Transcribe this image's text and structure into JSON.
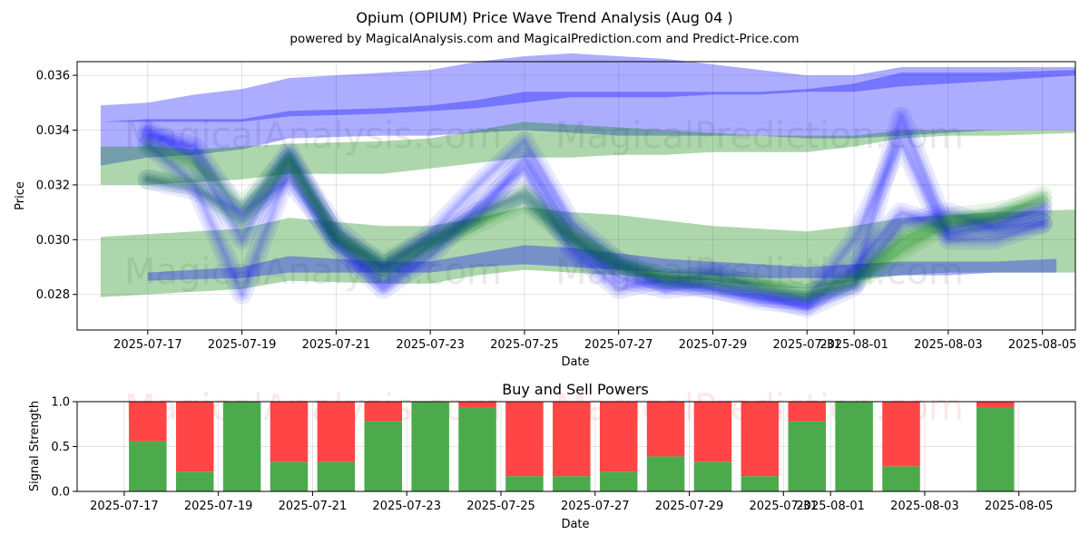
{
  "chart_data": [
    {
      "type": "line",
      "title": "Opium (OPIUM) Price Wave Trend Analysis (Aug 04 )",
      "subtitle": "powered by MagicalAnalysis.com and MagicalPrediction.com and Predict-Price.com",
      "xlabel": "Date",
      "ylabel": "Price",
      "ylim": [
        0.0267,
        0.0365
      ],
      "xrange_days": [
        -1.5,
        19.7
      ],
      "y_ticks": [
        0.028,
        0.03,
        0.032,
        0.034,
        0.036
      ],
      "y_tick_labels": [
        "0.028",
        "0.030",
        "0.032",
        "0.034",
        "0.036"
      ],
      "x_ticks": [
        0,
        2,
        4,
        6,
        8,
        10,
        12,
        14,
        15,
        17,
        19
      ],
      "x_tick_labels": [
        "2025-07-17",
        "2025-07-19",
        "2025-07-21",
        "2025-07-23",
        "2025-07-25",
        "2025-07-27",
        "2025-07-29",
        "2025-07-31",
        "2025-08-01",
        "2025-08-03",
        "2025-08-05"
      ],
      "watermarks": [
        "MagicalAnalysis.com",
        "MagicalPrediction.com"
      ],
      "price_days": [
        0,
        1,
        2,
        3,
        4,
        5,
        6,
        7,
        8,
        9,
        10,
        11,
        12,
        13,
        14,
        15,
        16,
        17,
        18,
        19
      ],
      "price_series": [
        {
          "name": "wave-1",
          "color": "#0000ff",
          "values": [
            0.0338,
            0.0334,
            0.0308,
            0.0332,
            0.03,
            0.0284,
            0.0298,
            0.0308,
            0.033,
            0.0302,
            0.0286,
            0.0282,
            0.0284,
            0.028,
            0.0275,
            0.0283,
            0.0345,
            0.0302,
            0.0305,
            0.0312
          ]
        },
        {
          "name": "wave-2",
          "color": "#0000ff",
          "values": [
            0.0335,
            0.032,
            0.028,
            0.0326,
            0.0298,
            0.0282,
            0.0294,
            0.0312,
            0.0326,
            0.0296,
            0.0282,
            0.0286,
            0.0282,
            0.0278,
            0.0276,
            0.029,
            0.031,
            0.0304,
            0.0308,
            0.031
          ]
        },
        {
          "name": "wave-3",
          "color": "#0000ff",
          "values": [
            0.0322,
            0.0318,
            0.031,
            0.0322,
            0.03,
            0.029,
            0.03,
            0.031,
            0.0316,
            0.03,
            0.029,
            0.0284,
            0.0282,
            0.0279,
            0.0278,
            0.0284,
            0.0306,
            0.031,
            0.0304,
            0.0306
          ]
        },
        {
          "name": "wave-4",
          "color": "#0000ff",
          "values": [
            0.034,
            0.033,
            0.03,
            0.033,
            0.0304,
            0.029,
            0.0302,
            0.032,
            0.0336,
            0.0306,
            0.0292,
            0.0284,
            0.0288,
            0.0282,
            0.0278,
            0.03,
            0.0336,
            0.03,
            0.03,
            0.0306
          ]
        },
        {
          "name": "wave-5",
          "color": "#008000",
          "values": [
            0.0334,
            0.0328,
            0.0312,
            0.033,
            0.03,
            0.0292,
            0.03,
            0.0308,
            0.0318,
            0.0302,
            0.0292,
            0.0286,
            0.0284,
            0.0282,
            0.028,
            0.0286,
            0.03,
            0.0308,
            0.031,
            0.0314
          ]
        },
        {
          "name": "wave-6",
          "color": "#008000",
          "values": [
            0.0322,
            0.032,
            0.0306,
            0.0328,
            0.0302,
            0.0288,
            0.0298,
            0.0306,
            0.0314,
            0.03,
            0.029,
            0.0286,
            0.0286,
            0.0284,
            0.028,
            0.0284,
            0.0296,
            0.0306,
            0.0308,
            0.0316
          ]
        }
      ],
      "bands": [
        {
          "name": "upper-blue-wide",
          "color": "#0000ff",
          "days": [
            -1,
            0,
            1,
            2,
            3,
            5,
            6,
            7,
            8,
            9,
            10,
            11,
            12,
            13,
            14,
            15,
            16,
            17,
            18,
            19.7
          ],
          "upper": [
            0.0349,
            0.035,
            0.0353,
            0.0355,
            0.0359,
            0.0361,
            0.0362,
            0.0365,
            0.0367,
            0.0368,
            0.0367,
            0.0366,
            0.0364,
            0.0362,
            0.036,
            0.036,
            0.0363,
            0.0363,
            0.0363,
            0.0363
          ],
          "lower": [
            0.0343,
            0.0343,
            0.0343,
            0.0343,
            0.0345,
            0.0346,
            0.0347,
            0.0348,
            0.035,
            0.0352,
            0.0352,
            0.0352,
            0.0353,
            0.0353,
            0.0354,
            0.0354,
            0.0356,
            0.0357,
            0.0358,
            0.036
          ]
        },
        {
          "name": "upper-blue-dark",
          "color": "#0000ff",
          "days": [
            -1,
            0,
            1,
            2,
            3,
            5,
            6,
            7,
            8,
            9,
            10,
            11,
            12,
            13,
            14,
            15,
            16,
            17,
            18,
            19.7
          ],
          "upper": [
            0.0343,
            0.0344,
            0.0344,
            0.0344,
            0.0347,
            0.0348,
            0.0349,
            0.0351,
            0.0354,
            0.0354,
            0.0354,
            0.0354,
            0.0354,
            0.0354,
            0.0355,
            0.0357,
            0.0361,
            0.0361,
            0.0361,
            0.0362
          ],
          "lower": [
            0.0327,
            0.033,
            0.0331,
            0.0333,
            0.0337,
            0.0338,
            0.0338,
            0.0339,
            0.034,
            0.0339,
            0.0338,
            0.0338,
            0.0338,
            0.0338,
            0.0337,
            0.0337,
            0.0338,
            0.0339,
            0.034,
            0.034
          ]
        },
        {
          "name": "upper-green",
          "color": "#008000",
          "days": [
            -1,
            0,
            1,
            2,
            3,
            5,
            6,
            7,
            8,
            9,
            10,
            11,
            12,
            13,
            14,
            15,
            16,
            17,
            18,
            19.7
          ],
          "upper": [
            0.0334,
            0.0334,
            0.0333,
            0.0334,
            0.0335,
            0.0336,
            0.0337,
            0.034,
            0.0343,
            0.0342,
            0.0341,
            0.034,
            0.0339,
            0.0338,
            0.0338,
            0.0338,
            0.034,
            0.034,
            0.034,
            0.034
          ],
          "lower": [
            0.032,
            0.032,
            0.0321,
            0.0322,
            0.0324,
            0.0324,
            0.0326,
            0.0328,
            0.033,
            0.033,
            0.0331,
            0.0331,
            0.0332,
            0.0332,
            0.0332,
            0.0334,
            0.0337,
            0.0338,
            0.0338,
            0.0339
          ]
        },
        {
          "name": "lower-green",
          "color": "#008000",
          "days": [
            -1,
            0,
            2,
            3,
            5,
            6,
            7,
            8,
            9,
            10,
            11,
            12,
            13,
            14,
            15,
            16,
            17,
            18,
            19.7
          ],
          "upper": [
            0.0301,
            0.0302,
            0.0304,
            0.0308,
            0.0305,
            0.0305,
            0.0308,
            0.0312,
            0.031,
            0.0309,
            0.0307,
            0.0305,
            0.0304,
            0.0303,
            0.0305,
            0.0308,
            0.0309,
            0.031,
            0.0311
          ],
          "lower": [
            0.0279,
            0.028,
            0.0282,
            0.0285,
            0.0284,
            0.0284,
            0.0287,
            0.0289,
            0.0288,
            0.0287,
            0.0286,
            0.0285,
            0.0283,
            0.0282,
            0.0285,
            0.0287,
            0.0288,
            0.0288,
            0.0288
          ]
        },
        {
          "name": "lower-blue",
          "color": "#0000ff",
          "days": [
            0,
            2,
            3,
            5,
            6,
            7,
            8,
            9,
            10,
            11,
            12,
            13,
            14,
            15,
            16,
            17,
            18,
            19.3
          ],
          "upper": [
            0.0288,
            0.029,
            0.0294,
            0.0292,
            0.0292,
            0.0295,
            0.0298,
            0.0297,
            0.0295,
            0.0293,
            0.0292,
            0.0291,
            0.029,
            0.0291,
            0.0292,
            0.0292,
            0.0292,
            0.0293
          ],
          "lower": [
            0.0285,
            0.0286,
            0.0288,
            0.0288,
            0.0288,
            0.029,
            0.0291,
            0.029,
            0.0289,
            0.0288,
            0.0287,
            0.0286,
            0.0286,
            0.0286,
            0.0287,
            0.0287,
            0.0288,
            0.0288
          ]
        }
      ]
    },
    {
      "type": "bar",
      "title": "Buy and Sell Powers",
      "xlabel": "Date",
      "ylabel": "Signal Strength",
      "ylim": [
        0,
        1
      ],
      "xrange_days": [
        -1.5,
        19.7
      ],
      "y_ticks": [
        0.0,
        0.5,
        1.0
      ],
      "y_tick_labels": [
        "0.0",
        "0.5",
        "1.0"
      ],
      "x_ticks": [
        -0.5,
        1.5,
        3.5,
        5.5,
        7.5,
        9.5,
        11.5,
        13.5,
        14.5,
        16.5,
        18.5
      ],
      "x_tick_labels": [
        "2025-07-17",
        "2025-07-19",
        "2025-07-21",
        "2025-07-23",
        "2025-07-25",
        "2025-07-27",
        "2025-07-29",
        "2025-07-31",
        "2025-08-01",
        "2025-08-03",
        "2025-08-05"
      ],
      "series_colors": {
        "buy": "#4caa4c",
        "sell": "#ff4545"
      },
      "days": [
        0,
        1,
        2,
        3,
        4,
        5,
        6,
        7,
        8,
        9,
        10,
        11,
        12,
        13,
        14,
        15,
        16,
        18
      ],
      "buy": [
        0.56,
        0.22,
        1.0,
        0.33,
        0.33,
        0.78,
        1.0,
        0.94,
        0.17,
        0.17,
        0.22,
        0.39,
        0.33,
        0.17,
        0.78,
        1.0,
        0.28,
        0.94
      ],
      "sell": [
        0.44,
        0.78,
        0.0,
        0.67,
        0.67,
        0.22,
        0.0,
        0.06,
        0.83,
        0.83,
        0.78,
        0.61,
        0.67,
        0.83,
        0.22,
        0.0,
        0.72,
        0.06
      ]
    }
  ]
}
